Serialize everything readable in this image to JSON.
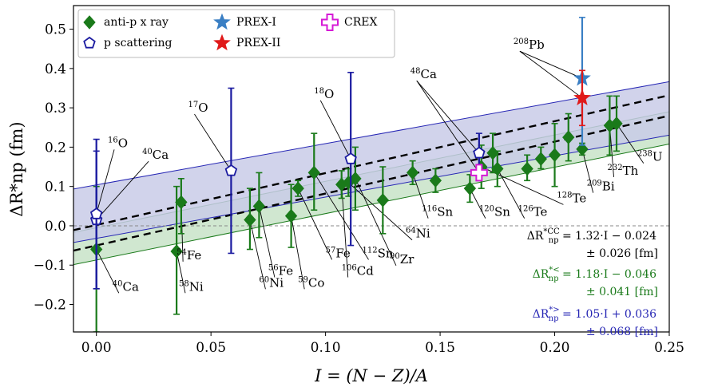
{
  "chart_data": {
    "type": "scatter",
    "xlabel": "I = (N − Z)/A",
    "ylabel": "ΔR*np (fm)",
    "xlim": [
      -0.01,
      0.25
    ],
    "ylim": [
      -0.27,
      0.56
    ],
    "x_ticks": [
      "0.00",
      "0.05",
      "0.10",
      "0.15",
      "0.20",
      "0.25"
    ],
    "y_ticks": [
      "−0.2",
      "−0.1",
      "0.0",
      "0.1",
      "0.2",
      "0.3",
      "0.4",
      "0.5"
    ],
    "x_tick_values": [
      0.0,
      0.05,
      0.1,
      0.15,
      0.2,
      0.25
    ],
    "y_tick_values": [
      -0.2,
      -0.1,
      0.0,
      0.1,
      0.2,
      0.3,
      0.4,
      0.5
    ],
    "grid": false,
    "legend_position": "top-left",
    "legend": [
      "anti-p x ray",
      "p scattering",
      "PREX-I",
      "PREX-II",
      "CREX"
    ],
    "series": [
      {
        "name": "anti-p x ray",
        "marker": "diamond",
        "color": "#1a7a1a",
        "points": [
          {
            "x": 0.0,
            "y": -0.06,
            "lo": -0.27,
            "hi": 0.1
          },
          {
            "x": 0.035,
            "y": -0.065,
            "lo": -0.225,
            "hi": 0.1
          },
          {
            "x": 0.037,
            "y": 0.06,
            "lo": -0.02,
            "hi": 0.12
          },
          {
            "x": 0.067,
            "y": 0.015,
            "lo": -0.06,
            "hi": 0.095
          },
          {
            "x": 0.071,
            "y": 0.05,
            "lo": -0.03,
            "hi": 0.135
          },
          {
            "x": 0.085,
            "y": 0.025,
            "lo": -0.055,
            "hi": 0.105
          },
          {
            "x": 0.088,
            "y": 0.095,
            "lo": 0.075,
            "hi": 0.115
          },
          {
            "x": 0.095,
            "y": 0.135,
            "lo": 0.04,
            "hi": 0.235
          },
          {
            "x": 0.107,
            "y": 0.105,
            "lo": 0.07,
            "hi": 0.14
          },
          {
            "x": 0.11,
            "y": 0.11,
            "lo": 0.075,
            "hi": 0.145
          },
          {
            "x": 0.113,
            "y": 0.12,
            "lo": 0.04,
            "hi": 0.2
          },
          {
            "x": 0.125,
            "y": 0.065,
            "lo": -0.02,
            "hi": 0.15
          },
          {
            "x": 0.138,
            "y": 0.135,
            "lo": 0.105,
            "hi": 0.165
          },
          {
            "x": 0.148,
            "y": 0.115,
            "lo": 0.085,
            "hi": 0.145
          },
          {
            "x": 0.163,
            "y": 0.095,
            "lo": 0.06,
            "hi": 0.13
          },
          {
            "x": 0.168,
            "y": 0.15,
            "lo": 0.095,
            "hi": 0.205
          },
          {
            "x": 0.173,
            "y": 0.185,
            "lo": 0.135,
            "hi": 0.235
          },
          {
            "x": 0.175,
            "y": 0.145,
            "lo": 0.1,
            "hi": 0.19
          },
          {
            "x": 0.188,
            "y": 0.145,
            "lo": 0.115,
            "hi": 0.18
          },
          {
            "x": 0.194,
            "y": 0.17,
            "lo": 0.145,
            "hi": 0.2
          },
          {
            "x": 0.2,
            "y": 0.18,
            "lo": 0.1,
            "hi": 0.26
          },
          {
            "x": 0.206,
            "y": 0.225,
            "lo": 0.165,
            "hi": 0.285
          },
          {
            "x": 0.212,
            "y": 0.195,
            "lo": 0.18,
            "hi": 0.21
          },
          {
            "x": 0.224,
            "y": 0.255,
            "lo": 0.18,
            "hi": 0.33
          },
          {
            "x": 0.227,
            "y": 0.26,
            "lo": 0.19,
            "hi": 0.33
          }
        ]
      },
      {
        "name": "p scattering",
        "marker": "pentagon",
        "color": "#1a1aa0",
        "points": [
          {
            "x": 0.0,
            "y": 0.015,
            "lo": -0.16,
            "hi": 0.19
          },
          {
            "x": 0.0,
            "y": 0.03,
            "lo": -0.16,
            "hi": 0.22
          },
          {
            "x": 0.0588,
            "y": 0.14,
            "lo": -0.07,
            "hi": 0.35
          },
          {
            "x": 0.111,
            "y": 0.17,
            "lo": -0.05,
            "hi": 0.39
          },
          {
            "x": 0.167,
            "y": 0.185,
            "lo": 0.135,
            "hi": 0.235
          }
        ]
      },
      {
        "name": "PREX-I",
        "marker": "star",
        "color": "#3a7fc4",
        "points": [
          {
            "x": 0.212,
            "y": 0.375,
            "lo": 0.205,
            "hi": 0.53
          }
        ]
      },
      {
        "name": "PREX-II",
        "marker": "star",
        "color": "#e01a1a",
        "points": [
          {
            "x": 0.212,
            "y": 0.325,
            "lo": 0.255,
            "hi": 0.395
          }
        ]
      },
      {
        "name": "CREX",
        "marker": "plus",
        "color": "#d61ad6",
        "points": [
          {
            "x": 0.167,
            "y": 0.135,
            "lo": 0.13,
            "hi": 0.14
          }
        ]
      }
    ],
    "fits": [
      {
        "name": "CC",
        "slope": 1.32,
        "intercept": -0.024,
        "err": 0.026,
        "color": "#000000",
        "band": "#000000"
      },
      {
        "name": "<",
        "slope": 1.18,
        "intercept": -0.046,
        "err": 0.041,
        "color": "#1a7a1a",
        "band": "#c8e3c8"
      },
      {
        "name": ">",
        "slope": 1.05,
        "intercept": 0.036,
        "err": 0.068,
        "color": "#2626b4",
        "band": "#c9cbe8"
      }
    ],
    "fit_labels": [
      {
        "lhs": "ΔR",
        "sup": "*CC",
        "sub": "np",
        "rhs": " = 1.32·I − 0.024",
        "err": "±  0.026 [fm]",
        "color": "#000000"
      },
      {
        "lhs": "ΔR",
        "sup": "*<",
        "sub": "np",
        "rhs": " = 1.18·I − 0.046",
        "err": "±  0.041 [fm]",
        "color": "#1a7a1a"
      },
      {
        "lhs": "ΔR",
        "sup": "*>",
        "sub": "np",
        "rhs": " = 1.05·I + 0.036",
        "err": "±  0.068 [fm]",
        "color": "#2626b4"
      }
    ],
    "annotations": [
      {
        "sup": "16",
        "el": "O",
        "x": 0.005,
        "y": 0.2,
        "targets": [
          [
            0.0,
            0.03
          ]
        ]
      },
      {
        "sup": "40",
        "el": "Ca",
        "x": 0.02,
        "y": 0.17,
        "targets": [
          [
            0.0,
            0.015
          ]
        ]
      },
      {
        "sup": "17",
        "el": "O",
        "x": 0.04,
        "y": 0.29,
        "targets": [
          [
            0.0588,
            0.14
          ]
        ]
      },
      {
        "sup": "18",
        "el": "O",
        "x": 0.095,
        "y": 0.325,
        "targets": [
          [
            0.111,
            0.17
          ]
        ]
      },
      {
        "sup": "48",
        "el": "Ca",
        "x": 0.137,
        "y": 0.375,
        "targets": [
          [
            0.167,
            0.185
          ],
          [
            0.167,
            0.135
          ]
        ]
      },
      {
        "sup": "208",
        "el": "Pb",
        "x": 0.182,
        "y": 0.45,
        "targets": [
          [
            0.212,
            0.375
          ],
          [
            0.212,
            0.325
          ]
        ]
      },
      {
        "sup": "40",
        "el": "Ca",
        "x": 0.007,
        "y": -0.165,
        "targets": [
          [
            0.0,
            -0.06
          ]
        ]
      },
      {
        "sup": "54",
        "el": "Fe",
        "x": 0.035,
        "y": -0.085,
        "targets": [
          [
            0.037,
            0.06
          ]
        ]
      },
      {
        "sup": "58",
        "el": "Ni",
        "x": 0.036,
        "y": -0.165,
        "targets": [
          [
            0.035,
            -0.065
          ]
        ]
      },
      {
        "sup": "60",
        "el": "Ni",
        "x": 0.071,
        "y": -0.155,
        "targets": [
          [
            0.067,
            0.015
          ]
        ]
      },
      {
        "sup": "56",
        "el": "Fe",
        "x": 0.075,
        "y": -0.125,
        "targets": [
          [
            0.071,
            0.05
          ]
        ]
      },
      {
        "sup": "59",
        "el": "Co",
        "x": 0.088,
        "y": -0.155,
        "targets": [
          [
            0.085,
            0.025
          ]
        ]
      },
      {
        "sup": "57",
        "el": "Fe",
        "x": 0.1,
        "y": -0.08,
        "targets": [
          [
            0.088,
            0.095
          ]
        ]
      },
      {
        "sup": "106",
        "el": "Cd",
        "x": 0.107,
        "y": -0.125,
        "targets": [
          [
            0.107,
            0.105
          ]
        ]
      },
      {
        "sup": "112",
        "el": "Sn",
        "x": 0.116,
        "y": -0.08,
        "targets": [
          [
            0.095,
            0.135
          ]
        ]
      },
      {
        "sup": "90",
        "el": "Zr",
        "x": 0.128,
        "y": -0.095,
        "targets": [
          [
            0.113,
            0.12
          ]
        ]
      },
      {
        "sup": "64",
        "el": "Ni",
        "x": 0.135,
        "y": -0.03,
        "targets": [
          [
            0.11,
            0.11
          ]
        ]
      },
      {
        "sup": "116",
        "el": "Sn",
        "x": 0.142,
        "y": 0.025,
        "targets": [
          [
            0.138,
            0.135
          ]
        ]
      },
      {
        "sup": "120",
        "el": "Sn",
        "x": 0.167,
        "y": 0.025,
        "targets": [
          [
            0.163,
            0.095
          ]
        ]
      },
      {
        "sup": "126",
        "el": "Te",
        "x": 0.184,
        "y": 0.025,
        "targets": [
          [
            0.175,
            0.145
          ]
        ]
      },
      {
        "sup": "128",
        "el": "Te",
        "x": 0.201,
        "y": 0.06,
        "targets": [
          [
            0.168,
            0.15
          ]
        ]
      },
      {
        "sup": "209",
        "el": "Bi",
        "x": 0.214,
        "y": 0.09,
        "targets": [
          [
            0.212,
            0.195
          ]
        ]
      },
      {
        "sup": "232",
        "el": "Th",
        "x": 0.223,
        "y": 0.13,
        "targets": [
          [
            0.224,
            0.255
          ]
        ]
      },
      {
        "sup": "238",
        "el": "U",
        "x": 0.236,
        "y": 0.165,
        "targets": [
          [
            0.227,
            0.26
          ]
        ]
      }
    ]
  }
}
